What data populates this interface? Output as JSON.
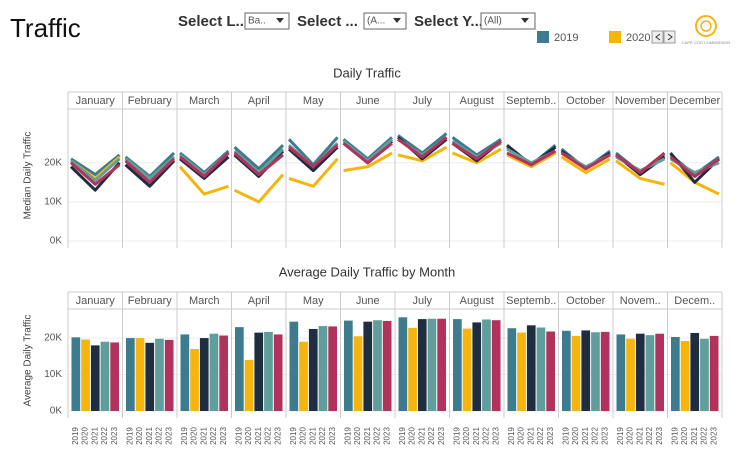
{
  "header": {
    "title": "Traffic",
    "logo_text": "CAPE COD COMMISSION"
  },
  "filters": [
    {
      "label": "Select L...",
      "value": "Ba.."
    },
    {
      "label": "Select ...",
      "value": "(A..."
    },
    {
      "label": "Select Y...",
      "value": "(All)"
    }
  ],
  "chart_data": [
    {
      "type": "line",
      "title": "Daily Traffic",
      "y_label": "Median Daily Traffic",
      "categories": [
        "January",
        "February",
        "March",
        "April",
        "May",
        "June",
        "July",
        "August",
        "Septemb..",
        "October",
        "November",
        "December"
      ],
      "ylim": [
        0,
        33500
      ],
      "yticks": [
        {
          "value": 0,
          "label": "0K"
        },
        {
          "value": 10000,
          "label": "10K"
        },
        {
          "value": 20000,
          "label": "20K"
        }
      ],
      "series": [
        {
          "name": "2019",
          "color": "#3d7c8f",
          "values": [
            [
              21000,
              17000,
              22000
            ],
            [
              21500,
              16500,
              22500
            ],
            [
              22500,
              17500,
              23000
            ],
            [
              24000,
              18500,
              24500
            ],
            [
              26000,
              19500,
              26500
            ],
            [
              26000,
              21000,
              26500
            ],
            [
              27000,
              22500,
              27500
            ],
            [
              26500,
              22000,
              26000
            ],
            [
              24000,
              19500,
              24500
            ],
            [
              23500,
              18500,
              23000
            ],
            [
              22500,
              17500,
              22000
            ],
            [
              22000,
              17000,
              21500
            ]
          ]
        },
        {
          "name": "2020",
          "color": "#f5b50e",
          "values": [
            [
              20500,
              16000,
              21500
            ],
            [
              21000,
              16000,
              21000
            ],
            [
              19000,
              12000,
              14000
            ],
            [
              13000,
              10000,
              17000
            ],
            [
              16000,
              14000,
              21000
            ],
            [
              18000,
              19000,
              22500
            ],
            [
              22000,
              20500,
              24000
            ],
            [
              22500,
              20000,
              23500
            ],
            [
              22000,
              19000,
              22500
            ],
            [
              21500,
              17500,
              21000
            ],
            [
              20500,
              16000,
              14500
            ],
            [
              20000,
              15000,
              12000
            ]
          ]
        },
        {
          "name": "2021",
          "color": "#1f2d40",
          "values": [
            [
              19000,
              13000,
              20000
            ],
            [
              19500,
              14000,
              20500
            ],
            [
              21000,
              16000,
              21500
            ],
            [
              22000,
              16500,
              23000
            ],
            [
              23500,
              18000,
              24000
            ],
            [
              25000,
              20000,
              25500
            ],
            [
              26500,
              21000,
              26000
            ],
            [
              25000,
              20500,
              25500
            ],
            [
              24500,
              19500,
              24000
            ],
            [
              23000,
              18500,
              22500
            ],
            [
              22000,
              17000,
              21500
            ],
            [
              22500,
              15000,
              21000
            ]
          ]
        },
        {
          "name": "2022",
          "color": "#5f9e9b",
          "values": [
            [
              20500,
              15500,
              21000
            ],
            [
              21000,
              16000,
              21500
            ],
            [
              22000,
              17000,
              22500
            ],
            [
              23000,
              17500,
              23500
            ],
            [
              24500,
              19000,
              25000
            ],
            [
              25500,
              20500,
              26000
            ],
            [
              26000,
              22000,
              26500
            ],
            [
              25500,
              21500,
              25000
            ],
            [
              23500,
              20000,
              23000
            ],
            [
              22500,
              19000,
              22000
            ],
            [
              21500,
              18000,
              21000
            ],
            [
              21000,
              17500,
              20000
            ]
          ]
        },
        {
          "name": "2023",
          "color": "#b2325b",
          "values": [
            [
              20000,
              14500,
              19500
            ],
            [
              20500,
              15000,
              21000
            ],
            [
              21500,
              16500,
              22500
            ],
            [
              22500,
              17000,
              22000
            ],
            [
              24000,
              19000,
              24500
            ],
            [
              25000,
              20000,
              25000
            ],
            [
              26000,
              21500,
              26500
            ],
            [
              25000,
              21000,
              25500
            ],
            [
              22500,
              19500,
              23000
            ],
            [
              22500,
              18500,
              22000
            ],
            [
              22000,
              17500,
              22500
            ],
            [
              21500,
              16500,
              21000
            ]
          ]
        }
      ]
    },
    {
      "type": "bar",
      "title": "Average Daily Traffic by Month",
      "y_label": "Average Daily Traffic",
      "categories": [
        "January",
        "February",
        "March",
        "April",
        "May",
        "June",
        "July",
        "August",
        "Septemb..",
        "October",
        "Novem..",
        "Decem.."
      ],
      "ylim": [
        0,
        27700
      ],
      "yticks": [
        {
          "value": 0,
          "label": "0K"
        },
        {
          "value": 10000,
          "label": "10K"
        },
        {
          "value": 20000,
          "label": "20K"
        }
      ],
      "series": [
        {
          "name": "2019",
          "color": "#3d7c8f",
          "values": [
            20200,
            20000,
            21000,
            23000,
            24500,
            24800,
            25700,
            25200,
            22700,
            22000,
            21000,
            20300
          ]
        },
        {
          "name": "2020",
          "color": "#f5b50e",
          "values": [
            19600,
            20000,
            17000,
            14000,
            19000,
            20500,
            22800,
            22600,
            21500,
            20600,
            19800,
            19200
          ]
        },
        {
          "name": "2021",
          "color": "#1f2d40",
          "values": [
            18000,
            18700,
            20000,
            21500,
            22500,
            24500,
            25200,
            24300,
            23500,
            22100,
            21200,
            21400
          ]
        },
        {
          "name": "2022",
          "color": "#5f9e9b",
          "values": [
            19000,
            19800,
            21200,
            21700,
            23300,
            24900,
            25300,
            25100,
            22900,
            21600,
            20800,
            19800
          ]
        },
        {
          "name": "2023",
          "color": "#b2325b",
          "values": [
            18800,
            19500,
            20700,
            21000,
            23200,
            24700,
            25300,
            24900,
            21800,
            21700,
            21200,
            20600
          ]
        }
      ]
    }
  ]
}
